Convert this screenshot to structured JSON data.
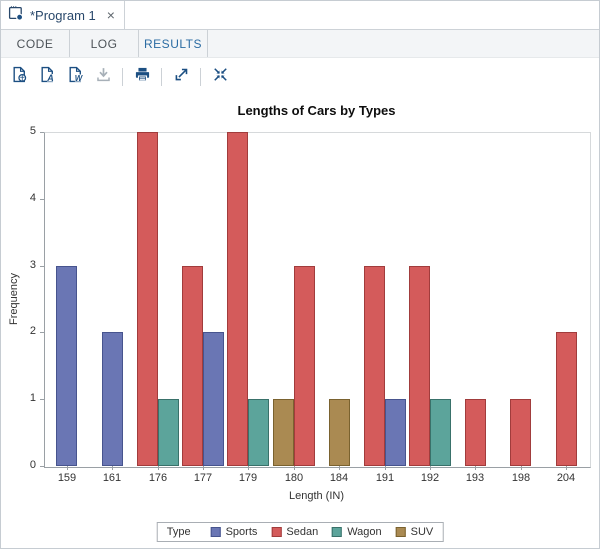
{
  "doc_tab": {
    "title": "*Program 1",
    "close_glyph": "×"
  },
  "tabs": {
    "items": [
      {
        "label": "CODE",
        "active": false
      },
      {
        "label": "LOG",
        "active": false
      },
      {
        "label": "RESULTS",
        "active": true
      }
    ]
  },
  "toolbar": {
    "icons": [
      "download-html-icon",
      "download-pdf-icon",
      "download-rtf-icon",
      "download-icon",
      "print-icon",
      "maximize-icon",
      "collapse-icon"
    ],
    "accent_color": "#1c4f82",
    "disabled_color": "#a7b0b8"
  },
  "chart_data": {
    "type": "bar",
    "title": "Lengths of Cars by Types",
    "xlabel": "Length (IN)",
    "ylabel": "Frequency",
    "ylim": [
      0,
      5
    ],
    "yticks": [
      0,
      1,
      2,
      3,
      4,
      5
    ],
    "categories": [
      "159",
      "161",
      "176",
      "177",
      "179",
      "180",
      "184",
      "191",
      "192",
      "193",
      "198",
      "204"
    ],
    "series_styles": {
      "Sports": {
        "fill": "#6A76B4",
        "stroke": "#47548E"
      },
      "Sedan": {
        "fill": "#D45B5B",
        "stroke": "#A13C3C"
      },
      "Wagon": {
        "fill": "#5CA49B",
        "stroke": "#39716A"
      },
      "SUV": {
        "fill": "#AA8A52",
        "stroke": "#7A622F"
      }
    },
    "groups": [
      {
        "category": "159",
        "bars": [
          {
            "type": "Sports",
            "value": 3
          }
        ]
      },
      {
        "category": "161",
        "bars": [
          {
            "type": "Sports",
            "value": 2
          }
        ]
      },
      {
        "category": "176",
        "bars": [
          {
            "type": "Sedan",
            "value": 5
          },
          {
            "type": "Wagon",
            "value": 1
          }
        ]
      },
      {
        "category": "177",
        "bars": [
          {
            "type": "Sedan",
            "value": 3
          },
          {
            "type": "Sports",
            "value": 2
          }
        ]
      },
      {
        "category": "179",
        "bars": [
          {
            "type": "Sedan",
            "value": 5
          },
          {
            "type": "Wagon",
            "value": 1
          }
        ]
      },
      {
        "category": "180",
        "bars": [
          {
            "type": "SUV",
            "value": 1
          },
          {
            "type": "Sedan",
            "value": 3
          }
        ]
      },
      {
        "category": "184",
        "bars": [
          {
            "type": "SUV",
            "value": 1
          }
        ]
      },
      {
        "category": "191",
        "bars": [
          {
            "type": "Sedan",
            "value": 3
          },
          {
            "type": "Sports",
            "value": 1
          }
        ]
      },
      {
        "category": "192",
        "bars": [
          {
            "type": "Sedan",
            "value": 3
          },
          {
            "type": "Wagon",
            "value": 1
          }
        ]
      },
      {
        "category": "193",
        "bars": [
          {
            "type": "Sedan",
            "value": 1
          }
        ]
      },
      {
        "category": "198",
        "bars": [
          {
            "type": "Sedan",
            "value": 1
          }
        ]
      },
      {
        "category": "204",
        "bars": [
          {
            "type": "Sedan",
            "value": 2
          }
        ]
      }
    ],
    "legend": {
      "title": "Type",
      "entries": [
        "Sports",
        "Sedan",
        "Wagon",
        "SUV"
      ],
      "position": "bottom-center"
    },
    "grid": false
  }
}
